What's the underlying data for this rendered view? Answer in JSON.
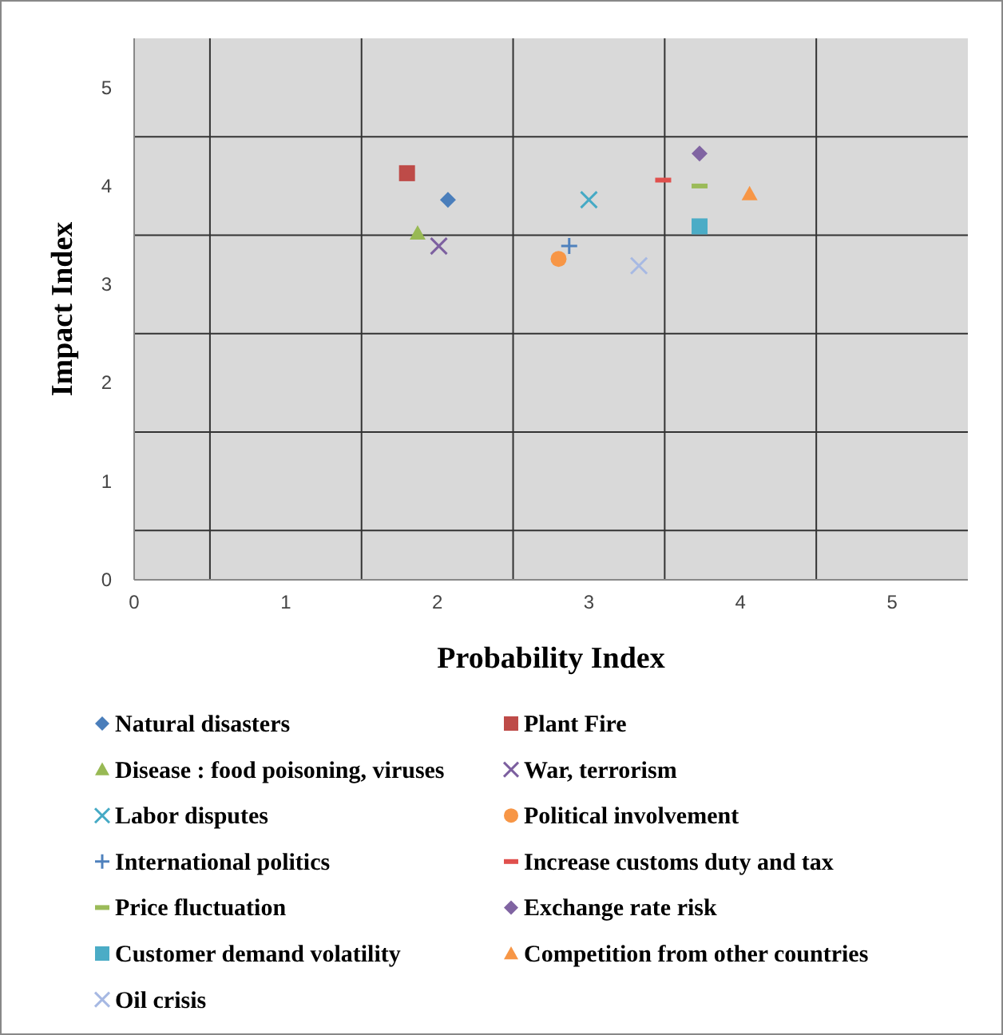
{
  "chart_data": {
    "type": "scatter",
    "xlabel": "Probability Index",
    "ylabel": "Impact Index",
    "xlim": [
      0,
      5.5
    ],
    "ylim": [
      0,
      5.5
    ],
    "xticks": [
      0,
      {
        "value": 0.5,
        "label": null
      },
      1,
      {
        "value": 1.5,
        "label": null
      },
      2,
      {
        "value": 2.5,
        "label": null
      },
      3,
      {
        "value": 3.5,
        "label": null
      },
      4,
      {
        "value": 4.5,
        "label": null
      },
      5
    ],
    "yticks": [
      0,
      {
        "value": 0.5,
        "label": null
      },
      1,
      {
        "value": 1.5,
        "label": null
      },
      2,
      {
        "value": 2.5,
        "label": null
      },
      3,
      {
        "value": 3.5,
        "label": null
      },
      4,
      {
        "value": 4.5,
        "label": null
      },
      5
    ],
    "grid": true,
    "legend": "bottom",
    "series": [
      {
        "name": "Natural disasters",
        "color": "#4a7ebb",
        "marker": "diamond",
        "x": [
          2.07
        ],
        "values": [
          3.86
        ]
      },
      {
        "name": "Plant Fire",
        "color": "#be4b48",
        "marker": "square",
        "x": [
          1.8
        ],
        "values": [
          4.13
        ]
      },
      {
        "name": "Disease : food poisoning, viruses",
        "color": "#98b954",
        "marker": "triangle",
        "x": [
          1.87
        ],
        "values": [
          3.52
        ]
      },
      {
        "name": "War, terrorism",
        "color": "#7d60a0",
        "marker": "cross",
        "x": [
          2.01
        ],
        "values": [
          3.39
        ]
      },
      {
        "name": "Labor disputes",
        "color": "#46aac5",
        "marker": "cross",
        "x": [
          3.0
        ],
        "values": [
          3.86
        ]
      },
      {
        "name": "Political involvement",
        "color": "#f79646",
        "marker": "circle",
        "x": [
          2.8
        ],
        "values": [
          3.26
        ]
      },
      {
        "name": "International politics",
        "color": "#4f81bd",
        "marker": "plus",
        "x": [
          2.87
        ],
        "values": [
          3.39
        ]
      },
      {
        "name": "Increase customs duty and tax",
        "color": "#e0504d",
        "x": [
          3.49
        ],
        "values": [
          4.06
        ]
      },
      {
        "name": "Price fluctuation",
        "color": "#9bbb59",
        "x": [
          3.73
        ],
        "values": [
          4.0
        ]
      },
      {
        "name": "Exchange rate risk",
        "color": "#8064a2",
        "marker": "diamond",
        "x": [
          3.73
        ],
        "values": [
          4.33
        ]
      },
      {
        "name": "Customer demand volatility",
        "color": "#4bacc6",
        "marker": "square",
        "x": [
          3.73
        ],
        "values": [
          3.59
        ]
      },
      {
        "name": "Competition from other countries",
        "color": "#f79646",
        "marker": "triangle",
        "x": [
          4.06
        ],
        "values": [
          3.92
        ]
      },
      {
        "name": "Oil crisis",
        "color": "#a7b9e3",
        "marker": "cross",
        "x": [
          3.33
        ],
        "values": [
          3.19
        ]
      }
    ]
  }
}
